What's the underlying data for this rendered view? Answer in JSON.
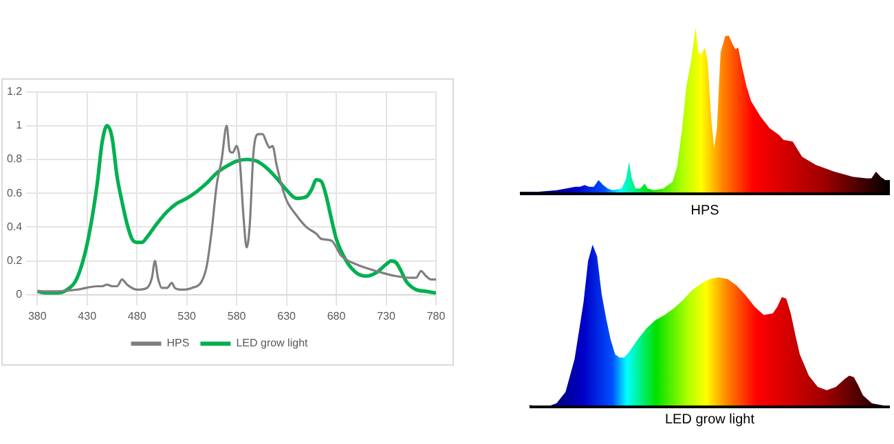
{
  "chart_data": {
    "type": "line",
    "xlim": [
      380,
      780
    ],
    "xticks": [
      380,
      430,
      480,
      530,
      580,
      630,
      680,
      730,
      780
    ],
    "ylim": [
      0,
      1.2
    ],
    "yticks": [
      0,
      0.2,
      0.4,
      0.6,
      0.8,
      1,
      1.2
    ],
    "grid": true,
    "legend": "bottom",
    "marker": "none",
    "line_style": "solid",
    "annotations": [
      "HPS",
      "LED grow light"
    ],
    "series": [
      {
        "name": "HPS",
        "color": "#7f7f7f",
        "x": [
          380,
          400,
          420,
          440,
          445,
          450,
          455,
          460,
          465,
          470,
          475,
          480,
          490,
          495,
          498,
          501,
          505,
          510,
          515,
          518,
          525,
          535,
          545,
          550,
          555,
          560,
          565,
          570,
          573,
          576,
          580,
          583,
          587,
          590,
          593,
          597,
          602,
          606,
          610,
          613,
          616,
          620,
          625,
          630,
          640,
          650,
          660,
          665,
          675,
          685,
          700,
          720,
          740,
          755,
          760,
          765,
          770,
          775,
          780
        ],
        "values": [
          0.02,
          0.02,
          0.03,
          0.05,
          0.05,
          0.06,
          0.05,
          0.05,
          0.09,
          0.06,
          0.04,
          0.03,
          0.04,
          0.1,
          0.2,
          0.1,
          0.04,
          0.04,
          0.07,
          0.04,
          0.03,
          0.04,
          0.08,
          0.17,
          0.38,
          0.65,
          0.8,
          1.0,
          0.85,
          0.84,
          0.88,
          0.8,
          0.45,
          0.28,
          0.4,
          0.85,
          0.95,
          0.95,
          0.9,
          0.87,
          0.88,
          0.77,
          0.65,
          0.56,
          0.47,
          0.4,
          0.36,
          0.33,
          0.32,
          0.23,
          0.18,
          0.14,
          0.11,
          0.1,
          0.1,
          0.14,
          0.11,
          0.09,
          0.09
        ]
      },
      {
        "name": "LED grow light",
        "color": "#00b050",
        "x": [
          380,
          390,
          400,
          410,
          420,
          430,
          440,
          445,
          450,
          455,
          460,
          465,
          470,
          475,
          480,
          485,
          490,
          500,
          510,
          520,
          530,
          540,
          550,
          560,
          570,
          580,
          590,
          600,
          610,
          620,
          630,
          640,
          650,
          655,
          660,
          665,
          670,
          675,
          680,
          690,
          700,
          710,
          720,
          730,
          735,
          740,
          745,
          750,
          760,
          770,
          780
        ],
        "values": [
          0.02,
          0.01,
          0.01,
          0.03,
          0.1,
          0.3,
          0.65,
          0.9,
          1.0,
          0.93,
          0.7,
          0.55,
          0.42,
          0.33,
          0.31,
          0.31,
          0.34,
          0.42,
          0.49,
          0.54,
          0.57,
          0.61,
          0.66,
          0.72,
          0.76,
          0.79,
          0.8,
          0.79,
          0.75,
          0.69,
          0.62,
          0.57,
          0.58,
          0.62,
          0.68,
          0.67,
          0.58,
          0.45,
          0.33,
          0.2,
          0.13,
          0.11,
          0.13,
          0.18,
          0.2,
          0.19,
          0.14,
          0.08,
          0.03,
          0.02,
          0.01
        ]
      }
    ]
  }
}
